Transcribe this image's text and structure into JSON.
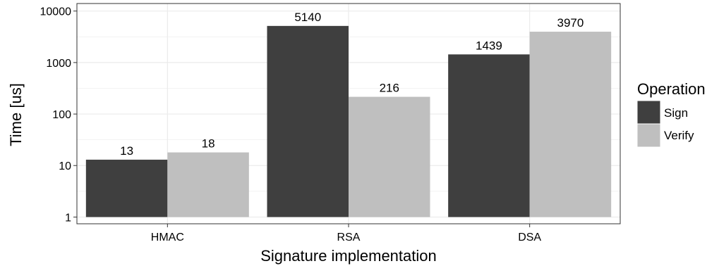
{
  "chart_data": {
    "type": "bar",
    "xlabel": "Signature implementation",
    "ylabel": "Time [us]",
    "y_scale": "log10",
    "ylim": [
      0.74,
      14000
    ],
    "y_ticks": [
      1,
      10,
      100,
      1000,
      10000
    ],
    "y_tick_labels": [
      "1",
      "10",
      "100",
      "1000",
      "10000"
    ],
    "categories": [
      "HMAC",
      "RSA",
      "DSA"
    ],
    "series": [
      {
        "name": "Sign",
        "values": [
          13,
          5140,
          1439
        ],
        "color": "#3f3f3f"
      },
      {
        "name": "Verify",
        "values": [
          18,
          216,
          3970
        ],
        "color": "#bfbfbf"
      }
    ],
    "legend": {
      "title": "Operation",
      "position": "right"
    },
    "grid": true,
    "grid_color": "#ebebeb",
    "frame_color": "#333333"
  }
}
